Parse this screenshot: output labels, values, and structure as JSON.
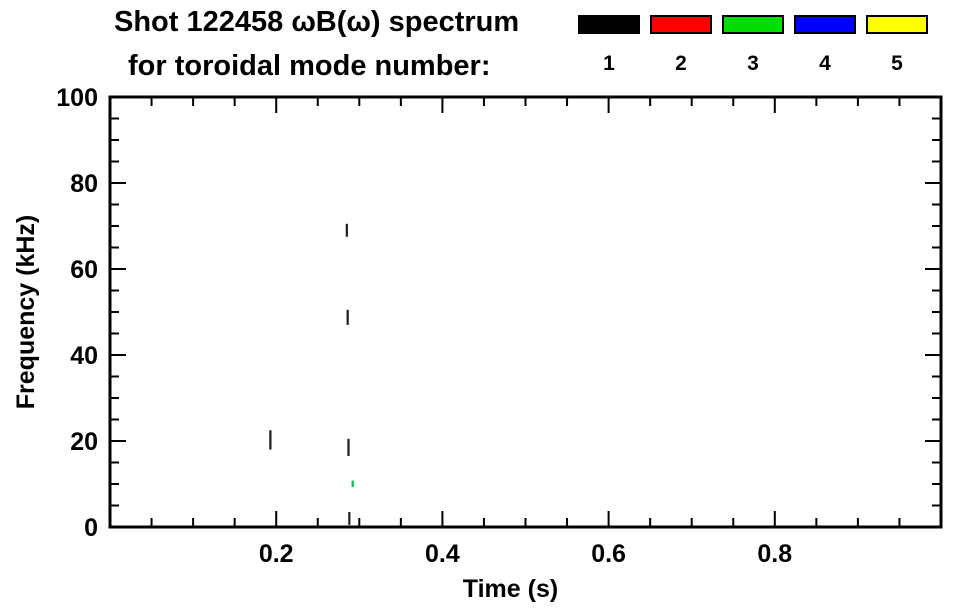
{
  "header": {
    "title": "Shot 122458 ωB(ω) spectrum",
    "subtitle": "for toroidal mode number:"
  },
  "legend": {
    "items": [
      {
        "label": "1",
        "color": "#000000"
      },
      {
        "label": "2",
        "color": "#ff0000"
      },
      {
        "label": "3",
        "color": "#00dd00"
      },
      {
        "label": "4",
        "color": "#0000ff"
      },
      {
        "label": "5",
        "color": "#ffff00"
      }
    ]
  },
  "chart_data": {
    "type": "scatter",
    "title": "Shot 122458 ωB(ω) spectrum for toroidal mode number: 1 2 3 4 5",
    "xlabel": "Time (s)",
    "ylabel": "Frequency (kHz)",
    "xlim": [
      0.0,
      1.0
    ],
    "ylim": [
      0,
      100
    ],
    "xticks": [
      0.2,
      0.4,
      0.6,
      0.8
    ],
    "xtick_labels": [
      "0.2",
      "0.4",
      "0.6",
      "0.8"
    ],
    "yticks": [
      0,
      20,
      40,
      60,
      80,
      100
    ],
    "ytick_labels": [
      "0",
      "20",
      "40",
      "60",
      "80",
      "100"
    ],
    "x_minor_step": 0.05,
    "y_minor_step": 5,
    "grid": false,
    "legend_position": "top-right-above-plot",
    "series": [
      {
        "name": "n=1",
        "color": "#1c1c1c",
        "segments": [
          [
            0.285,
            67.5,
            70.5
          ],
          [
            0.286,
            47.0,
            50.5
          ],
          [
            0.193,
            18.0,
            22.5
          ],
          [
            0.287,
            16.5,
            20.5
          ],
          [
            0.288,
            0.5,
            3.5
          ]
        ]
      },
      {
        "name": "n=3",
        "color": "#00bb44",
        "segments": [
          [
            0.292,
            9.3,
            10.8
          ]
        ]
      }
    ]
  }
}
